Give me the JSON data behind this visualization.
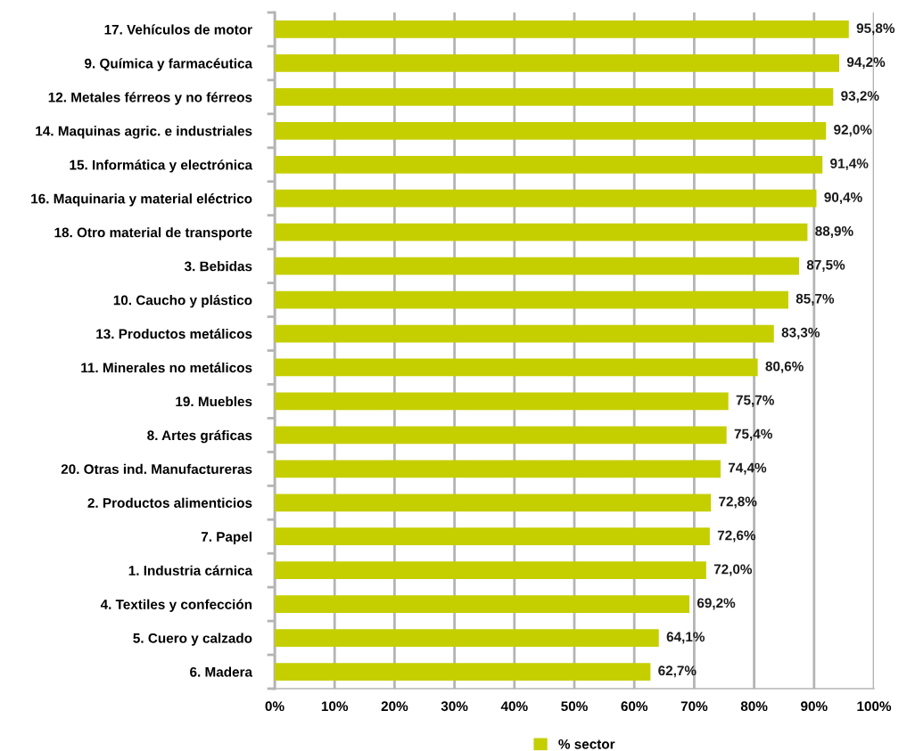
{
  "chart_data": {
    "type": "bar",
    "orientation": "horizontal",
    "categories": [
      "17. Vehículos de motor",
      "9. Química y farmacéutica",
      "12. Metales férreos y no férreos",
      "14. Maquinas agric. e industriales",
      "15. Informática y electrónica",
      "16. Maquinaria y material eléctrico",
      "18. Otro material de transporte",
      "3. Bebidas",
      "10. Caucho y plástico",
      "13. Productos metálicos",
      "11. Minerales no metálicos",
      "19. Muebles",
      "8. Artes gráficas",
      "20. Otras ind. Manufactureras",
      "2. Productos alimenticios",
      "7. Papel",
      "1. Industria cárnica",
      "4. Textiles y confección",
      "5. Cuero y calzado",
      "6. Madera"
    ],
    "series": [
      {
        "name": "% sector",
        "color": "#c5cf00",
        "values": [
          95.8,
          94.2,
          93.2,
          92.0,
          91.4,
          90.4,
          88.9,
          87.5,
          85.7,
          83.3,
          80.6,
          75.7,
          75.4,
          74.4,
          72.8,
          72.6,
          72.0,
          69.2,
          64.1,
          62.7
        ],
        "value_labels": [
          "95,8%",
          "94,2%",
          "93,2%",
          "92,0%",
          "91,4%",
          "90,4%",
          "88,9%",
          "87,5%",
          "85,7%",
          "83,3%",
          "80,6%",
          "75,7%",
          "75,4%",
          "74,4%",
          "72,8%",
          "72,6%",
          "72,0%",
          "69,2%",
          "64,1%",
          "62,7%"
        ]
      }
    ],
    "xlim": [
      0,
      100
    ],
    "xticks": [
      {
        "value": 0,
        "label": "0%"
      },
      {
        "value": 10,
        "label": "10%"
      },
      {
        "value": 20,
        "label": "20%"
      },
      {
        "value": 30,
        "label": "30%"
      },
      {
        "value": 40,
        "label": "40%"
      },
      {
        "value": 50,
        "label": "50%"
      },
      {
        "value": 60,
        "label": "60%"
      },
      {
        "value": 70,
        "label": "70%"
      },
      {
        "value": 80,
        "label": "80%"
      },
      {
        "value": 90,
        "label": "90%"
      },
      {
        "value": 100,
        "label": "100%"
      }
    ],
    "grid": "x",
    "legend": "bottom"
  }
}
